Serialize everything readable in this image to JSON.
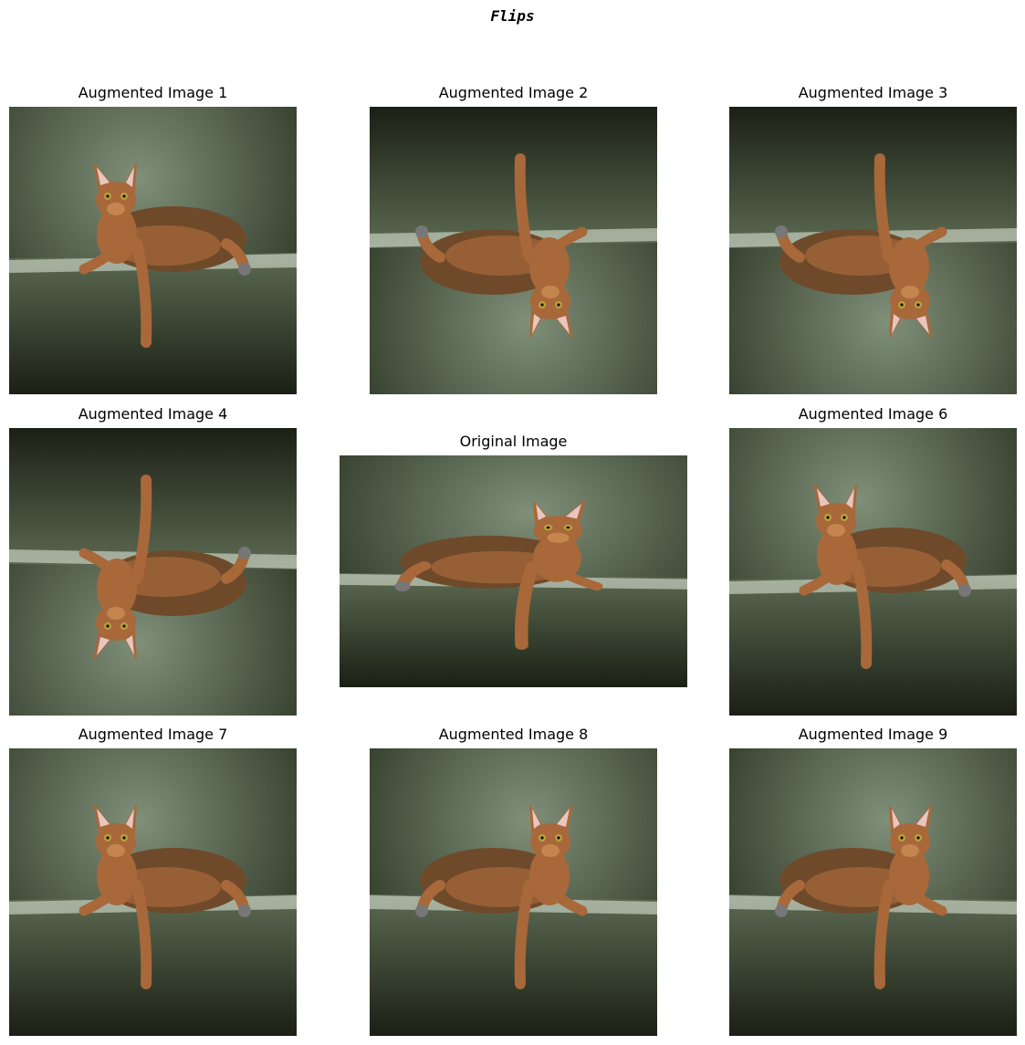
{
  "figure": {
    "title": "Flips"
  },
  "panels": [
    {
      "title": "Augmented Image 1",
      "flip_h": false,
      "flip_v": false,
      "shape": "square"
    },
    {
      "title": "Augmented Image 2",
      "flip_h": true,
      "flip_v": true,
      "shape": "square"
    },
    {
      "title": "Augmented Image 3",
      "flip_h": true,
      "flip_v": true,
      "shape": "square"
    },
    {
      "title": "Augmented Image 4",
      "flip_h": false,
      "flip_v": true,
      "shape": "square"
    },
    {
      "title": "Original Image",
      "flip_h": false,
      "flip_v": false,
      "shape": "wide"
    },
    {
      "title": "Augmented Image 6",
      "flip_h": false,
      "flip_v": false,
      "shape": "square"
    },
    {
      "title": "Augmented Image 7",
      "flip_h": false,
      "flip_v": false,
      "shape": "square"
    },
    {
      "title": "Augmented Image 8",
      "flip_h": true,
      "flip_v": false,
      "shape": "square"
    },
    {
      "title": "Augmented Image 9",
      "flip_h": true,
      "flip_v": false,
      "shape": "square"
    }
  ],
  "colors": {
    "wall_light": "#7f8f78",
    "wall_dark": "#27301f",
    "sofa_top": "#5c6a52",
    "sofa_dark": "#1b2015",
    "ledge_highlight": "#e6ece0",
    "cat_fur": "#a8683a",
    "cat_dark": "#6e4a2a",
    "cat_belly": "#c4864e",
    "ear_inner": "#e8c6c0",
    "eye": "#b9a23a"
  }
}
